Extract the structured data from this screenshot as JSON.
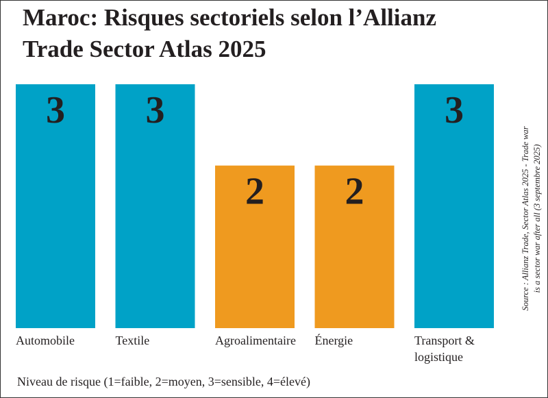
{
  "chart_data": {
    "type": "bar",
    "title": "Maroc: Risques sectoriels selon l’Allianz Trade Sector Atlas 2025",
    "categories": [
      "Automobile",
      "Textile",
      "Agroalimentaire",
      "Énergie",
      "Transport & logistique"
    ],
    "category_lines": [
      [
        "Automobile"
      ],
      [
        "Textile"
      ],
      [
        "Agroalimentaire"
      ],
      [
        "Énergie"
      ],
      [
        "Transport &",
        "logistique"
      ]
    ],
    "values": [
      3,
      3,
      2,
      2,
      3
    ],
    "value_labels": [
      "3",
      "3",
      "2",
      "2",
      "3"
    ],
    "ylim": [
      0,
      3
    ],
    "xlabel": "",
    "ylabel": "",
    "grid": false,
    "legend": "Niveau de risque (1=faible, 2=moyen, 3=sensible, 4=élevé)",
    "source": "Source : Allianz Trade, Sector Atlas 2025 - Trade war is a sector war after all (3 septembre 2025)",
    "colors": {
      "3": "#00a2c7",
      "2": "#ef9a1f"
    }
  }
}
